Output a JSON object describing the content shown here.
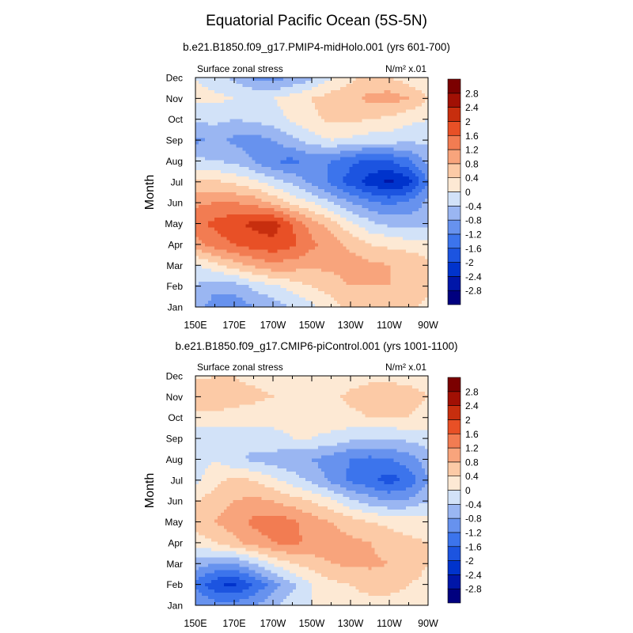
{
  "title": "Equatorial Pacific Ocean (5S-5N)",
  "colorbar": {
    "levels": [
      -2.8,
      -2.4,
      -2,
      -1.6,
      -1.2,
      -0.8,
      -0.4,
      0,
      0.4,
      0.8,
      1.2,
      1.6,
      2,
      2.4,
      2.8
    ],
    "labels": [
      "-2.8",
      "-2.4",
      "-2",
      "-1.6",
      "-1.2",
      "-0.8",
      "-0.4",
      "0",
      "0.4",
      "0.8",
      "1.2",
      "1.6",
      "2",
      "2.4",
      "2.8"
    ],
    "colors": [
      "#00007f",
      "#0016a8",
      "#0033cc",
      "#1c54e0",
      "#3c74ec",
      "#6792ee",
      "#9ab6f2",
      "#d2e2f8",
      "#fde9d4",
      "#fccaa6",
      "#f8a47c",
      "#f27c52",
      "#e85026",
      "#c72e0e",
      "#a11004",
      "#7b0000"
    ]
  },
  "chart_data": [
    {
      "type": "heatmap",
      "subtitle": "b.e21.B1850.f09_g17.PMIP4-midHolo.001 (yrs 601-700)",
      "left_label": "Surface zonal stress",
      "units": "N/m² x.01",
      "ylabel": "Month",
      "x": [
        "150E",
        "160E",
        "170E",
        "180",
        "170W",
        "160W",
        "150W",
        "140W",
        "130W",
        "120W",
        "110W",
        "100W",
        "90W"
      ],
      "xticklabels": [
        "150E",
        "170E",
        "170W",
        "150W",
        "130W",
        "110W",
        "90W"
      ],
      "y": [
        "Jan",
        "Feb",
        "Mar",
        "Apr",
        "May",
        "Jun",
        "Jul",
        "Aug",
        "Sep",
        "Oct",
        "Nov",
        "Dec"
      ],
      "z": [
        [
          -0.6,
          -1.0,
          -1.1,
          -0.8,
          -0.6,
          -0.4,
          -0.1,
          0.2,
          0.6,
          0.7,
          0.6,
          0.5,
          0.3
        ],
        [
          -0.4,
          -0.7,
          -0.6,
          -0.3,
          -0.1,
          0.2,
          0.4,
          0.6,
          0.8,
          0.8,
          0.8,
          0.7,
          0.5
        ],
        [
          -0.1,
          0.3,
          0.6,
          0.9,
          1.1,
          1.0,
          0.9,
          0.9,
          1.0,
          0.9,
          0.8,
          0.8,
          0.5
        ],
        [
          1.0,
          1.4,
          1.6,
          1.8,
          1.9,
          1.7,
          1.3,
          1.0,
          0.7,
          0.4,
          0.3,
          0.2,
          0.1
        ],
        [
          1.5,
          1.7,
          1.9,
          2.1,
          2.2,
          1.6,
          1.0,
          0.6,
          0.1,
          -0.3,
          -0.5,
          -0.6,
          -0.5
        ],
        [
          1.1,
          1.2,
          1.2,
          1.1,
          0.7,
          0.3,
          0.0,
          -0.4,
          -0.8,
          -1.1,
          -1.3,
          -1.1,
          -0.7
        ],
        [
          0.5,
          0.5,
          0.3,
          0.1,
          -0.2,
          -0.5,
          -0.9,
          -1.3,
          -1.8,
          -2.2,
          -2.5,
          -2.2,
          -1.2
        ],
        [
          -0.3,
          -0.4,
          -0.5,
          -0.8,
          -1.2,
          -1.3,
          -1.1,
          -1.2,
          -1.5,
          -1.7,
          -1.6,
          -1.3,
          -0.7
        ],
        [
          -0.9,
          -0.7,
          -0.9,
          -1.0,
          -0.8,
          -0.5,
          -0.2,
          0.0,
          -0.1,
          -0.2,
          -0.2,
          -0.3,
          -0.3
        ],
        [
          -0.3,
          -0.3,
          -0.4,
          -0.3,
          -0.2,
          0.1,
          0.3,
          0.5,
          0.5,
          0.4,
          0.3,
          0.1,
          0.0
        ],
        [
          0.1,
          0.1,
          0.0,
          0.0,
          0.0,
          0.2,
          0.4,
          0.6,
          0.7,
          0.9,
          1.0,
          0.8,
          0.4
        ],
        [
          0.0,
          -0.2,
          -0.5,
          -0.9,
          -1.0,
          -0.8,
          -0.5,
          0.0,
          0.3,
          0.5,
          0.4,
          0.2,
          0.0
        ]
      ]
    },
    {
      "type": "heatmap",
      "subtitle": "b.e21.B1850.f09_g17.CMIP6-piControl.001 (yrs 1001-1100)",
      "left_label": "Surface zonal stress",
      "units": "N/m² x.01",
      "ylabel": "Month",
      "x": [
        "150E",
        "160E",
        "170E",
        "180",
        "170W",
        "160W",
        "150W",
        "140W",
        "130W",
        "120W",
        "110W",
        "100W",
        "90W"
      ],
      "xticklabels": [
        "150E",
        "170E",
        "170W",
        "150W",
        "130W",
        "110W",
        "90W"
      ],
      "y": [
        "Jan",
        "Feb",
        "Mar",
        "Apr",
        "May",
        "Jun",
        "Jul",
        "Aug",
        "Sep",
        "Oct",
        "Nov",
        "Dec"
      ],
      "z": [
        [
          -0.8,
          -1.0,
          -1.0,
          -0.8,
          -0.5,
          -0.2,
          0.0,
          0.2,
          0.3,
          0.3,
          0.3,
          0.3,
          0.2
        ],
        [
          -1.3,
          -1.9,
          -2.1,
          -1.6,
          -1.0,
          -0.5,
          0.0,
          0.3,
          0.4,
          0.5,
          0.5,
          0.4,
          0.3
        ],
        [
          -0.6,
          -0.8,
          -0.8,
          -0.4,
          0.1,
          0.4,
          0.6,
          0.8,
          0.9,
          0.9,
          0.8,
          0.6,
          0.4
        ],
        [
          0.2,
          0.4,
          0.7,
          1.0,
          1.2,
          1.3,
          1.1,
          1.0,
          0.9,
          0.8,
          0.6,
          0.5,
          0.4
        ],
        [
          0.6,
          0.8,
          1.0,
          1.3,
          1.4,
          1.3,
          1.0,
          0.8,
          0.6,
          0.4,
          0.3,
          0.2,
          0.1
        ],
        [
          0.4,
          0.6,
          0.8,
          0.9,
          0.8,
          0.6,
          0.4,
          0.1,
          -0.3,
          -0.6,
          -0.8,
          -0.7,
          -0.4
        ],
        [
          -0.1,
          0.3,
          0.5,
          0.4,
          0.1,
          -0.2,
          -0.5,
          -0.9,
          -1.3,
          -1.5,
          -1.8,
          -1.5,
          -0.8
        ],
        [
          -0.3,
          0.0,
          -0.3,
          -0.5,
          -0.6,
          -0.7,
          -0.8,
          -1.0,
          -1.2,
          -1.3,
          -1.2,
          -1.0,
          -0.6
        ],
        [
          -0.3,
          -0.3,
          -0.3,
          -0.2,
          -0.1,
          0.0,
          0.0,
          -0.1,
          -0.3,
          -0.4,
          -0.4,
          -0.3,
          -0.2
        ],
        [
          0.2,
          0.3,
          0.3,
          0.2,
          0.1,
          0.1,
          0.1,
          0.2,
          0.3,
          0.4,
          0.4,
          0.4,
          0.3
        ],
        [
          0.8,
          0.6,
          0.5,
          0.5,
          0.4,
          0.3,
          0.2,
          0.3,
          0.5,
          0.6,
          0.6,
          0.5,
          0.4
        ],
        [
          0.3,
          0.4,
          0.4,
          0.3,
          0.2,
          0.1,
          0.0,
          0.1,
          0.2,
          0.3,
          0.3,
          0.3,
          0.3
        ]
      ]
    }
  ]
}
